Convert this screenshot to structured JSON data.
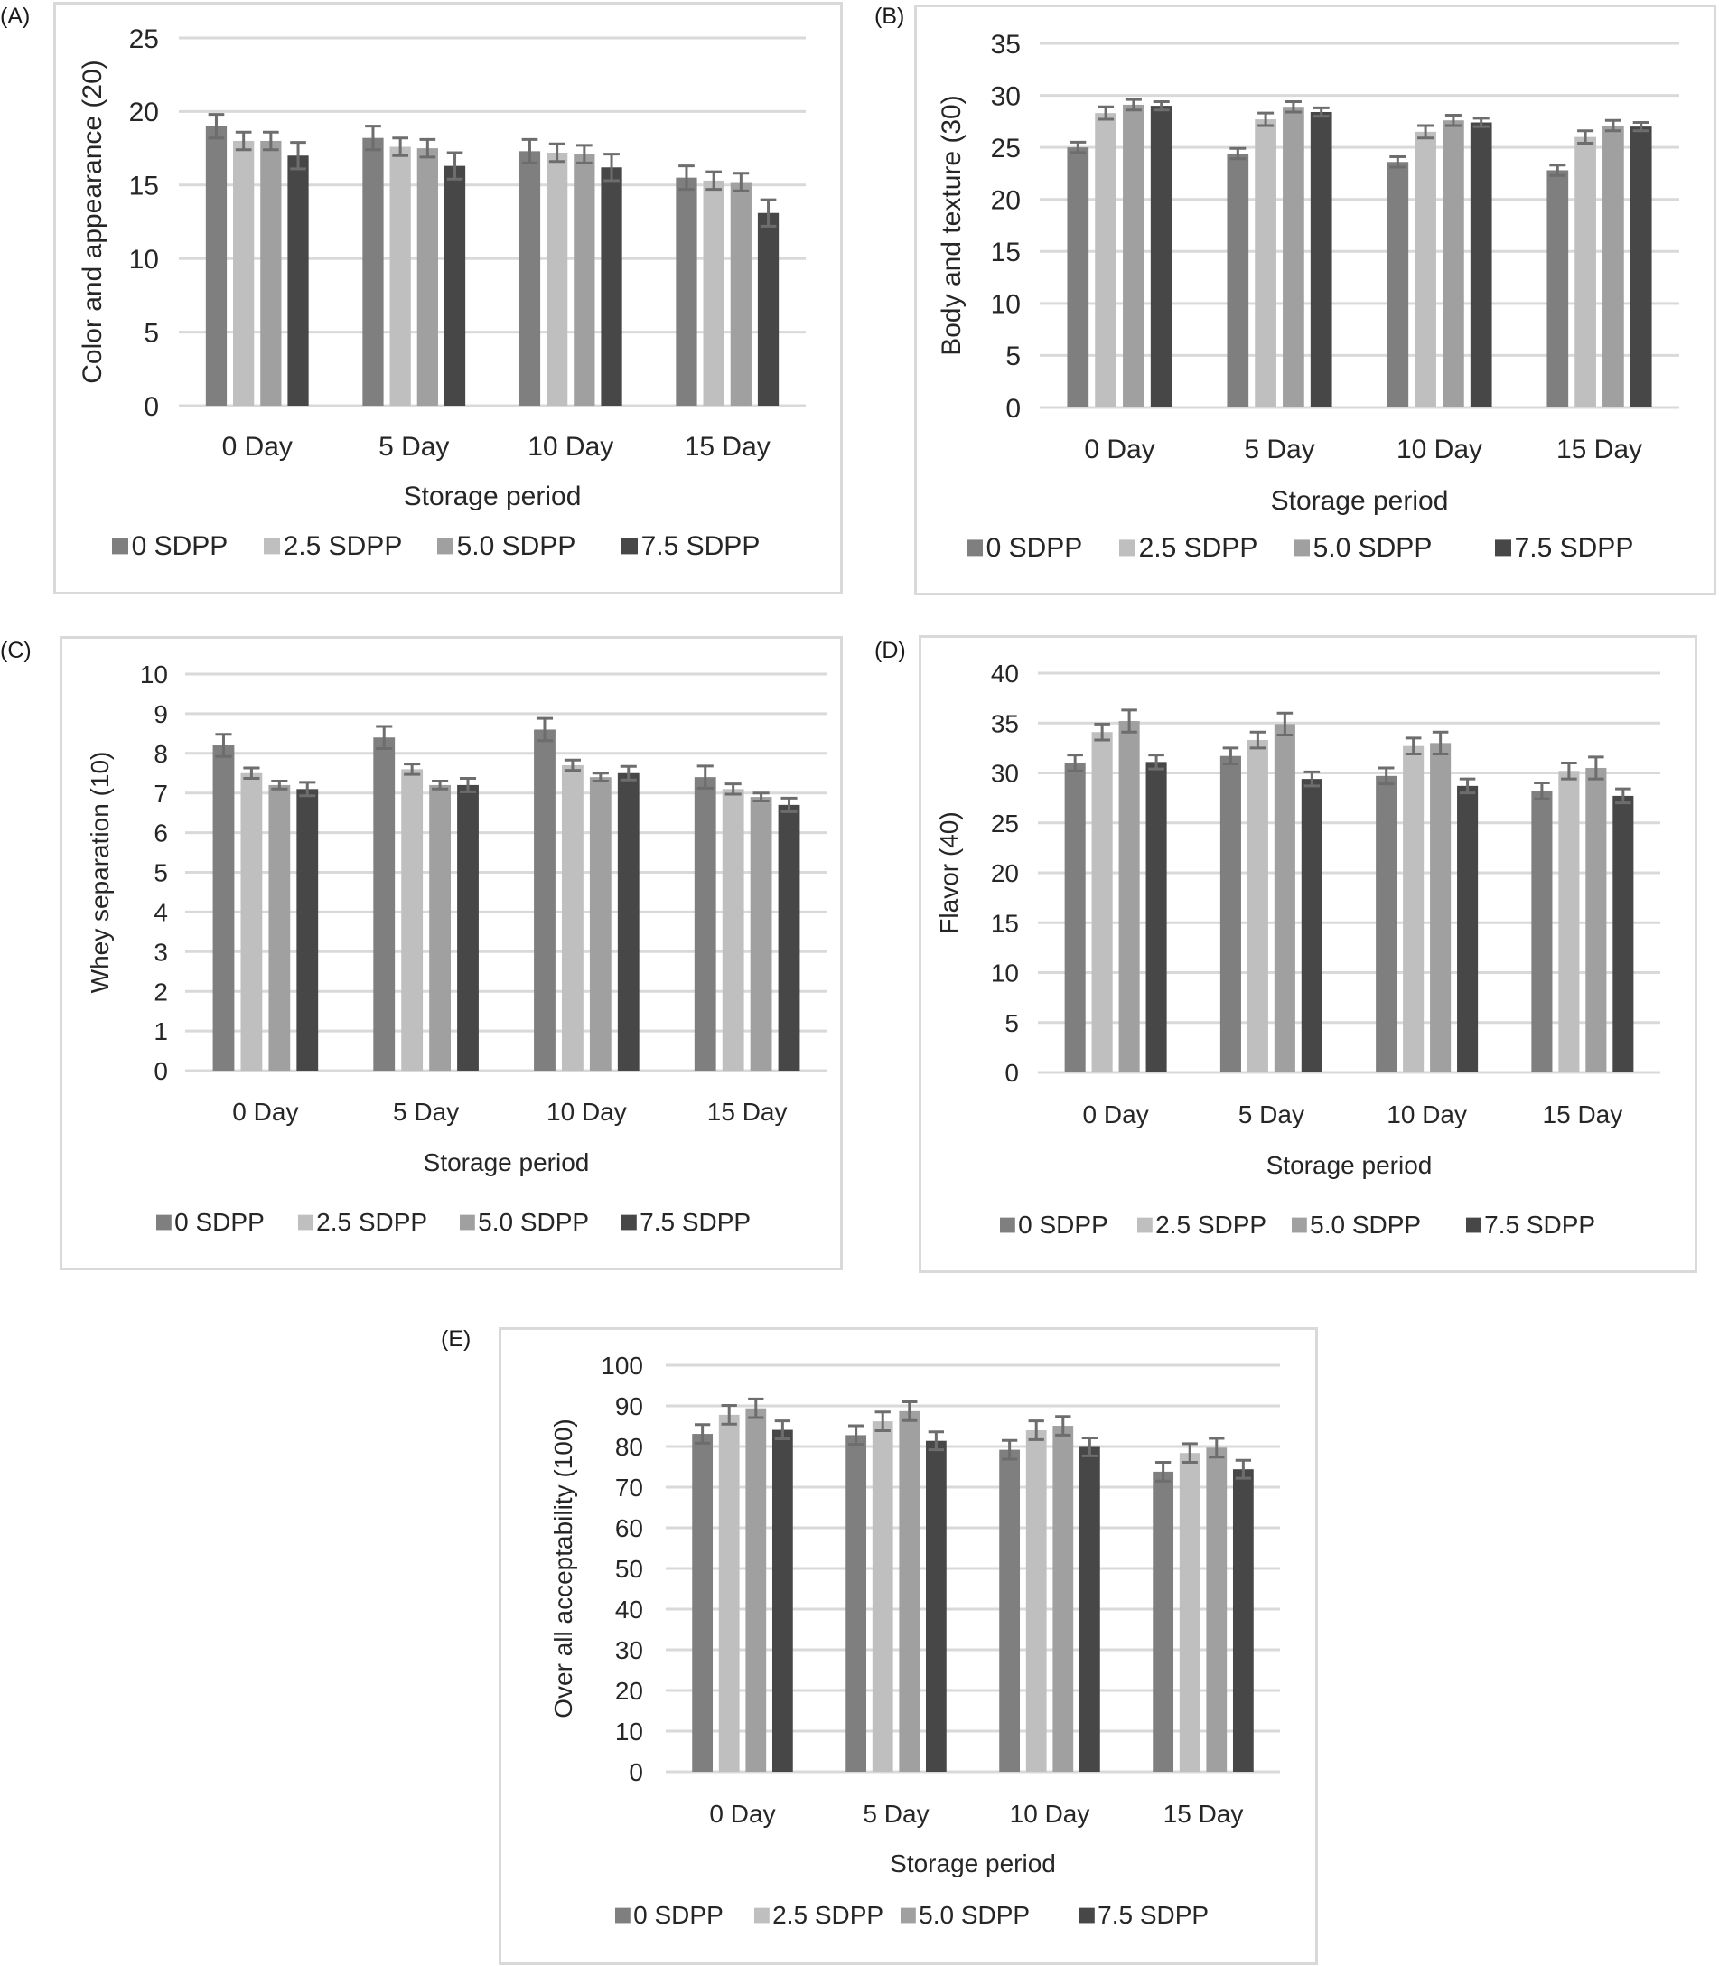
{
  "panel_labels": [
    "(A)",
    "(B)",
    "(C)",
    "(D)",
    "(E)"
  ],
  "colors": {
    "series": [
      "#7f7f7f",
      "#bfbfbf",
      "#a0a0a0",
      "#474747"
    ],
    "error_bar": "#6d6d6d",
    "grid": "#d9d9d9"
  },
  "chart_data": [
    {
      "id": "A",
      "type": "bar",
      "title": "",
      "xlabel": "Storage period",
      "ylabel": "Color and appearance (20)",
      "categories": [
        "0 Day",
        "5 Day",
        "10 Day",
        "15 Day"
      ],
      "ylim": [
        0,
        25
      ],
      "yticks": [
        0,
        5,
        10,
        15,
        20,
        25
      ],
      "grid": true,
      "legend": "bottom",
      "series": [
        {
          "name": "0 SDPP",
          "values": [
            19.0,
            18.2,
            17.3,
            15.5
          ],
          "errors": [
            0.8,
            0.8,
            0.8,
            0.8
          ]
        },
        {
          "name": "2.5 SDPP",
          "values": [
            18.0,
            17.6,
            17.2,
            15.3
          ],
          "errors": [
            0.6,
            0.6,
            0.6,
            0.6
          ]
        },
        {
          "name": "5.0 SDPP",
          "values": [
            18.0,
            17.5,
            17.1,
            15.2
          ],
          "errors": [
            0.6,
            0.6,
            0.6,
            0.6
          ]
        },
        {
          "name": "7.5 SDPP",
          "values": [
            17.0,
            16.3,
            16.2,
            13.1
          ],
          "errors": [
            0.9,
            0.9,
            0.9,
            0.9
          ]
        }
      ]
    },
    {
      "id": "B",
      "type": "bar",
      "title": "",
      "xlabel": "Storage period",
      "ylabel": "Body and texture (30)",
      "categories": [
        "0 Day",
        "5 Day",
        "10 Day",
        "15 Day"
      ],
      "ylim": [
        0,
        35
      ],
      "yticks": [
        0,
        5,
        10,
        15,
        20,
        25,
        30,
        35
      ],
      "grid": true,
      "legend": "bottom",
      "series": [
        {
          "name": "0 SDPP",
          "values": [
            25.0,
            24.4,
            23.6,
            22.8
          ],
          "errors": [
            0.5,
            0.5,
            0.5,
            0.5
          ]
        },
        {
          "name": "2.5 SDPP",
          "values": [
            28.3,
            27.7,
            26.5,
            26.0
          ],
          "errors": [
            0.6,
            0.6,
            0.6,
            0.6
          ]
        },
        {
          "name": "5.0 SDPP",
          "values": [
            29.1,
            28.9,
            27.6,
            27.1
          ],
          "errors": [
            0.5,
            0.5,
            0.5,
            0.5
          ]
        },
        {
          "name": "7.5 SDPP",
          "values": [
            29.0,
            28.4,
            27.4,
            27.0
          ],
          "errors": [
            0.4,
            0.4,
            0.4,
            0.4
          ]
        }
      ]
    },
    {
      "id": "C",
      "type": "bar",
      "title": "",
      "xlabel": "Storage period",
      "ylabel": "Whey separation (10)",
      "categories": [
        "0 Day",
        "5 Day",
        "10 Day",
        "15 Day"
      ],
      "ylim": [
        0,
        10
      ],
      "yticks": [
        0,
        1,
        2,
        3,
        4,
        5,
        6,
        7,
        8,
        9,
        10
      ],
      "grid": true,
      "legend": "bottom",
      "series": [
        {
          "name": "0 SDPP",
          "values": [
            8.2,
            8.4,
            8.6,
            7.4
          ],
          "errors": [
            0.28,
            0.28,
            0.28,
            0.28
          ]
        },
        {
          "name": "2.5 SDPP",
          "values": [
            7.5,
            7.6,
            7.7,
            7.1
          ],
          "errors": [
            0.13,
            0.13,
            0.13,
            0.13
          ]
        },
        {
          "name": "5.0 SDPP",
          "values": [
            7.2,
            7.2,
            7.4,
            6.9
          ],
          "errors": [
            0.1,
            0.1,
            0.1,
            0.1
          ]
        },
        {
          "name": "7.5 SDPP",
          "values": [
            7.1,
            7.2,
            7.5,
            6.7
          ],
          "errors": [
            0.17,
            0.17,
            0.17,
            0.17
          ]
        }
      ]
    },
    {
      "id": "D",
      "type": "bar",
      "title": "",
      "xlabel": "Storage period",
      "ylabel": "Flavor (40)",
      "categories": [
        "0 Day",
        "5 Day",
        "10 Day",
        "15 Day"
      ],
      "ylim": [
        0,
        40
      ],
      "yticks": [
        0,
        5,
        10,
        15,
        20,
        25,
        30,
        35,
        40
      ],
      "grid": true,
      "legend": "bottom",
      "series": [
        {
          "name": "0 SDPP",
          "values": [
            31.0,
            31.7,
            29.7,
            28.2
          ],
          "errors": [
            0.8,
            0.8,
            0.8,
            0.8
          ]
        },
        {
          "name": "2.5 SDPP",
          "values": [
            34.1,
            33.3,
            32.7,
            30.2
          ],
          "errors": [
            0.8,
            0.8,
            0.8,
            0.8
          ]
        },
        {
          "name": "5.0 SDPP",
          "values": [
            35.2,
            34.9,
            33.0,
            30.5
          ],
          "errors": [
            1.1,
            1.1,
            1.1,
            1.1
          ]
        },
        {
          "name": "7.5 SDPP",
          "values": [
            31.1,
            29.4,
            28.7,
            27.7
          ],
          "errors": [
            0.7,
            0.7,
            0.7,
            0.7
          ]
        }
      ]
    },
    {
      "id": "E",
      "type": "bar",
      "title": "",
      "xlabel": "Storage period",
      "ylabel": "Over all acceptability (100)",
      "categories": [
        "0 Day",
        "5 Day",
        "10 Day",
        "15 Day"
      ],
      "ylim": [
        0,
        100
      ],
      "yticks": [
        0,
        10,
        20,
        30,
        40,
        50,
        60,
        70,
        80,
        90,
        100
      ],
      "grid": true,
      "legend": "bottom",
      "series": [
        {
          "name": "0 SDPP",
          "values": [
            83.1,
            82.8,
            79.2,
            73.8
          ],
          "errors": [
            2.3,
            2.3,
            2.3,
            2.3
          ]
        },
        {
          "name": "2.5 SDPP",
          "values": [
            87.8,
            86.2,
            84.0,
            78.4
          ],
          "errors": [
            2.3,
            2.3,
            2.3,
            2.3
          ]
        },
        {
          "name": "5.0 SDPP",
          "values": [
            89.4,
            88.7,
            85.1,
            79.7
          ],
          "errors": [
            2.3,
            2.3,
            2.3,
            2.3
          ]
        },
        {
          "name": "7.5 SDPP",
          "values": [
            84.1,
            81.4,
            79.9,
            74.4
          ],
          "errors": [
            2.2,
            2.2,
            2.2,
            2.2
          ]
        }
      ]
    }
  ]
}
